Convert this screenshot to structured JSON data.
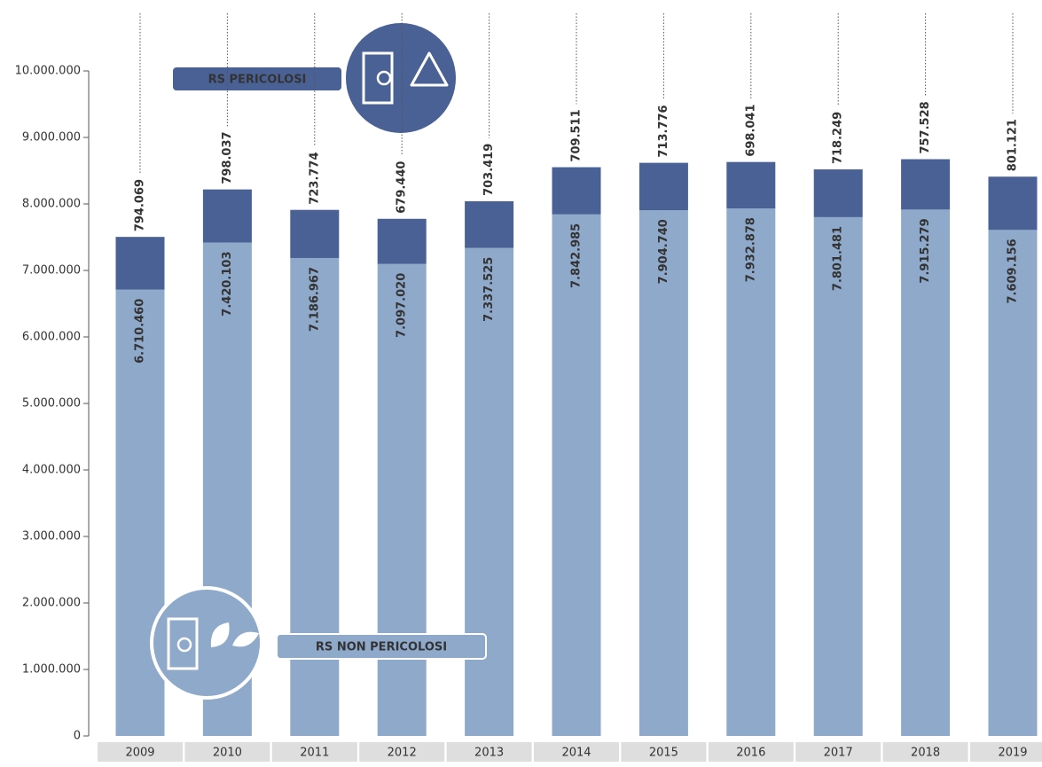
{
  "chart_data": {
    "type": "stacked_bar",
    "categories": [
      "2009",
      "2010",
      "2011",
      "2012",
      "2013",
      "2014",
      "2015",
      "2016",
      "2017",
      "2018",
      "2019"
    ],
    "series": [
      {
        "name": "RS NON PERICOLOSI",
        "color": "#8fa9cb",
        "values": [
          6710460,
          7420103,
          7186967,
          7097020,
          7337525,
          7842985,
          7904740,
          7932878,
          7801481,
          7915279,
          7609156
        ],
        "value_labels": [
          "6.710.460",
          "7.420.103",
          "7.186.967",
          "7.097.020",
          "7.337.525",
          "7.842.985",
          "7.904.740",
          "7.932.878",
          "7.801.481",
          "7.915.279",
          "7.609.156"
        ]
      },
      {
        "name": "RS PERICOLOSI",
        "color": "#4a6195",
        "values": [
          794069,
          798037,
          723774,
          679440,
          703419,
          709511,
          713776,
          698041,
          718249,
          757528,
          801121
        ],
        "value_labels": [
          "794.069",
          "798.037",
          "723.774",
          "679.440",
          "703.419",
          "709.511",
          "713.776",
          "698.041",
          "718.249",
          "757.528",
          "801.121"
        ]
      }
    ],
    "ylim": [
      0,
      10000000
    ],
    "yticks": [
      0,
      {
        "value": 1000000,
        "label": "1.000.000"
      },
      {
        "value": 2000000,
        "label": "2.000.000"
      },
      {
        "value": 3000000,
        "label": "3.000.000"
      },
      {
        "value": 4000000,
        "label": "4.000.000"
      },
      {
        "value": 5000000,
        "label": "5.000.000"
      },
      {
        "value": 6000000,
        "label": "6.000.000"
      },
      {
        "value": 7000000,
        "label": "7.000.000"
      },
      {
        "value": 8000000,
        "label": "8.000.000"
      },
      {
        "value": 9000000,
        "label": "9.000.000"
      },
      {
        "value": 10000000,
        "label": "10.000.000"
      }
    ]
  }
}
